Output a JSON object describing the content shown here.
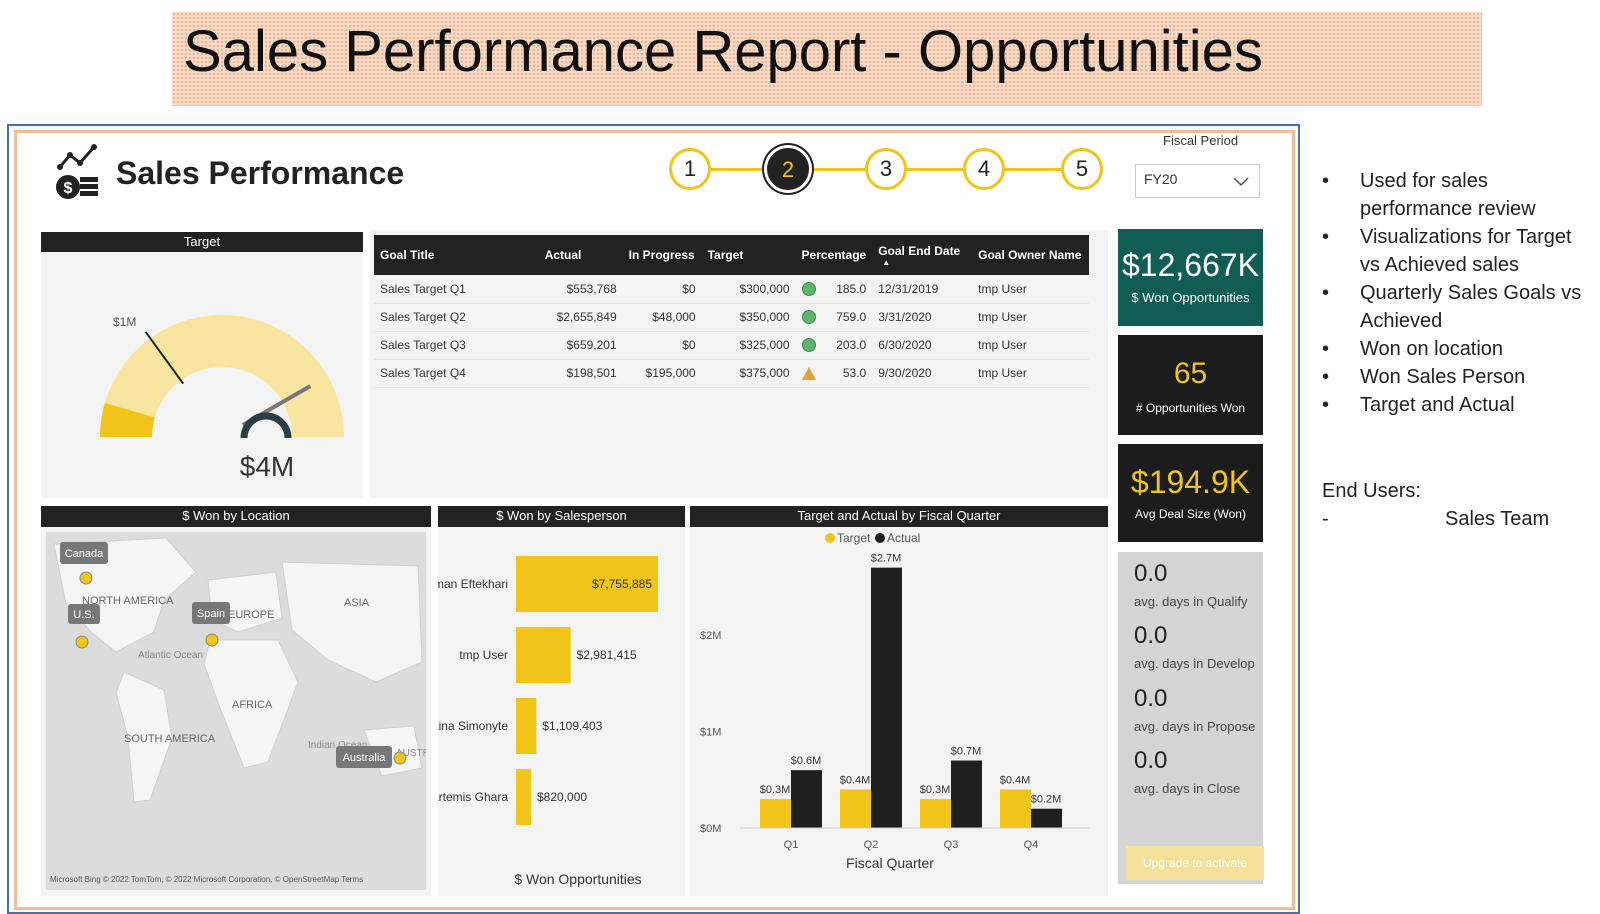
{
  "banner": {
    "title": "Sales Performance Report - Opportunities"
  },
  "header": {
    "title": "Sales Performance",
    "logo_icon": "chart-coins-icon"
  },
  "steps": [
    "1",
    "2",
    "3",
    "4",
    "5"
  ],
  "active_step": 2,
  "fiscal": {
    "label": "Fiscal Period",
    "value": "FY20"
  },
  "target_gauge": {
    "header": "Target",
    "min_label": "$1M",
    "value_label": "$4M",
    "value": 4.0,
    "target_marker": 1.0,
    "max": 4.8
  },
  "goals_table": {
    "columns": [
      "Goal Title",
      "Actual",
      "In Progress",
      "Target",
      "Percentage",
      "Goal End Date",
      "Goal Owner Name"
    ],
    "rows": [
      {
        "title": "Sales Target Q1",
        "actual": "$553,768",
        "in_progress": "$0",
        "target": "$300,000",
        "status": "green-circle",
        "pct": "185.0",
        "end": "12/31/2019",
        "owner": "tmp User"
      },
      {
        "title": "Sales Target Q2",
        "actual": "$2,655,849",
        "in_progress": "$48,000",
        "target": "$350,000",
        "status": "green-circle",
        "pct": "759.0",
        "end": "3/31/2020",
        "owner": "tmp User"
      },
      {
        "title": "Sales Target Q3",
        "actual": "$659,201",
        "in_progress": "$0",
        "target": "$325,000",
        "status": "green-circle",
        "pct": "203.0",
        "end": "6/30/2020",
        "owner": "tmp User"
      },
      {
        "title": "Sales Target Q4",
        "actual": "$198,501",
        "in_progress": "$195,000",
        "target": "$375,000",
        "status": "orange-triangle",
        "pct": "53.0",
        "end": "9/30/2020",
        "owner": "tmp User"
      }
    ]
  },
  "kpis": {
    "won": {
      "value": "$12,667K",
      "label": "$ Won Opportunities"
    },
    "count": {
      "value": "65",
      "label": "# Opportunities Won"
    },
    "avg": {
      "value": "$194.9K",
      "label": "Avg Deal Size (Won)"
    }
  },
  "stages": [
    {
      "value": "0.0",
      "label": "avg. days in Qualify"
    },
    {
      "value": "0.0",
      "label": "avg. days in Develop"
    },
    {
      "value": "0.0",
      "label": "avg. days in Propose"
    },
    {
      "value": "0.0",
      "label": "avg. days in Close"
    }
  ],
  "upgrade_label": "Upgrade to activate",
  "map": {
    "header": "$ Won by Location",
    "locations": [
      "Canada",
      "U.S.",
      "Spain",
      "Australia"
    ],
    "regions": [
      "NORTH AMERICA",
      "EUROPE",
      "ASIA",
      "AFRICA",
      "SOUTH AMERICA",
      "Atlantic Ocean",
      "Indian Ocean",
      "AUSTRA"
    ],
    "attribution": "Microsoft Bing  © 2022 TomTom, © 2022 Microsoft Corporation, © OpenStreetMap  Terms"
  },
  "chart_data": [
    {
      "type": "bar",
      "title": "$ Won by Salesperson",
      "orientation": "horizontal",
      "categories": [
        "Iman Eftekhari",
        "tmp User",
        "Lina Simonyte",
        "Artemis Ghara"
      ],
      "values": [
        7755885,
        2981415,
        1109403,
        820000
      ],
      "value_labels": [
        "$7,755,885",
        "$2,981,415",
        "$1,109,403",
        "$820,000"
      ],
      "xlabel": "$ Won Opportunities",
      "color": "#f0c419"
    },
    {
      "type": "bar",
      "title": "Target and Actual by Fiscal Quarter",
      "categories": [
        "Q1",
        "Q2",
        "Q3",
        "Q4"
      ],
      "series": [
        {
          "name": "Target",
          "values": [
            0.3,
            0.4,
            0.3,
            0.4
          ],
          "labels": [
            "$0.3M",
            "$0.4M",
            "$0.3M",
            "$0.4M"
          ],
          "color": "#f0c419"
        },
        {
          "name": "Actual",
          "values": [
            0.6,
            2.7,
            0.7,
            0.2
          ],
          "labels": [
            "$0.6M",
            "$2.7M",
            "$0.7M",
            "$0.2M"
          ],
          "color": "#1f1f1f"
        }
      ],
      "yticks": [
        "$0M",
        "$1M",
        "$2M"
      ],
      "ylim": [
        0,
        2.8
      ],
      "xlabel": "Fiscal Quarter",
      "ylabel": ""
    }
  ],
  "notes": {
    "bullets": [
      "Used for sales performance review",
      "Visualizations for Target vs Achieved sales",
      "Quarterly Sales Goals vs Achieved",
      "Won on location",
      "Won Sales Person",
      "Target and Actual"
    ],
    "end_users_label": "End Users:",
    "end_users_dash": "-",
    "end_users_value": "Sales Team"
  }
}
